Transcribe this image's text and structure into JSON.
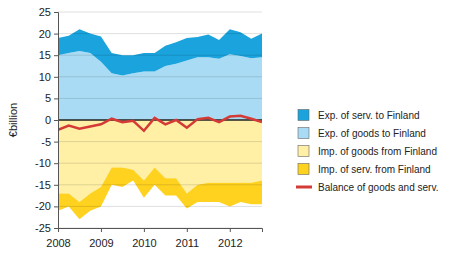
{
  "chart_data": {
    "type": "area",
    "stacked": true,
    "grid": true,
    "legend": "right",
    "y_label": "€billion",
    "categories": [
      "2008",
      null,
      null,
      null,
      "2009",
      null,
      null,
      null,
      "2010",
      null,
      null,
      null,
      "2011",
      null,
      null,
      null,
      "2012",
      null,
      null,
      null
    ],
    "ylim": [
      -25,
      25
    ],
    "yticks": [
      -25,
      -20,
      -15,
      -10,
      -5,
      0,
      5,
      10,
      15,
      20,
      25
    ],
    "series": [
      {
        "name": "Exp. of goods to Finland",
        "type": "area",
        "color": "#a9dcf4",
        "values": [
          15,
          15.5,
          16,
          15.5,
          13.5,
          10.8,
          10.3,
          10.8,
          11.2,
          11.2,
          12.5,
          13,
          13.8,
          14.5,
          14.5,
          14.2,
          15.2,
          14.8,
          14.3,
          14.5
        ]
      },
      {
        "name": "Exp. of serv. to Finland",
        "type": "area",
        "color": "#1aa3dc",
        "values": [
          4,
          4,
          5,
          4.5,
          5.8,
          4.7,
          4.7,
          4.2,
          4.3,
          4.3,
          4.7,
          5,
          5.2,
          4.7,
          5.3,
          4.3,
          5.8,
          5.5,
          4.5,
          5.5
        ]
      },
      {
        "name": "Imp. of goods from Finland",
        "type": "area",
        "color": "#fff0a6",
        "values": [
          -17,
          -17,
          -19,
          -17,
          -15.5,
          -11,
          -11,
          -11.5,
          -14,
          -11,
          -13.5,
          -13.5,
          -17,
          -15,
          -14.5,
          -14.5,
          -14.5,
          -14.5,
          -14.5,
          -14
        ]
      },
      {
        "name": "Imp. of serv. from Finland",
        "type": "area",
        "color": "#ffd21f",
        "values": [
          -4,
          -3,
          -4,
          -4,
          -4.5,
          -4,
          -4.5,
          -2.5,
          -4,
          -4,
          -4,
          -4,
          -3.5,
          -4,
          -4.5,
          -4.5,
          -5.5,
          -4.5,
          -5,
          -5.5
        ]
      },
      {
        "name": "Balance of goods and serv.",
        "type": "line",
        "color": "#d43a36",
        "values": [
          -2.3,
          -1.3,
          -2,
          -1.5,
          -1,
          0.3,
          -0.5,
          -0.2,
          -2.5,
          0.5,
          -1,
          0,
          -1.8,
          0.2,
          0.5,
          -0.5,
          0.8,
          1,
          0.3,
          -0.5
        ]
      }
    ]
  }
}
